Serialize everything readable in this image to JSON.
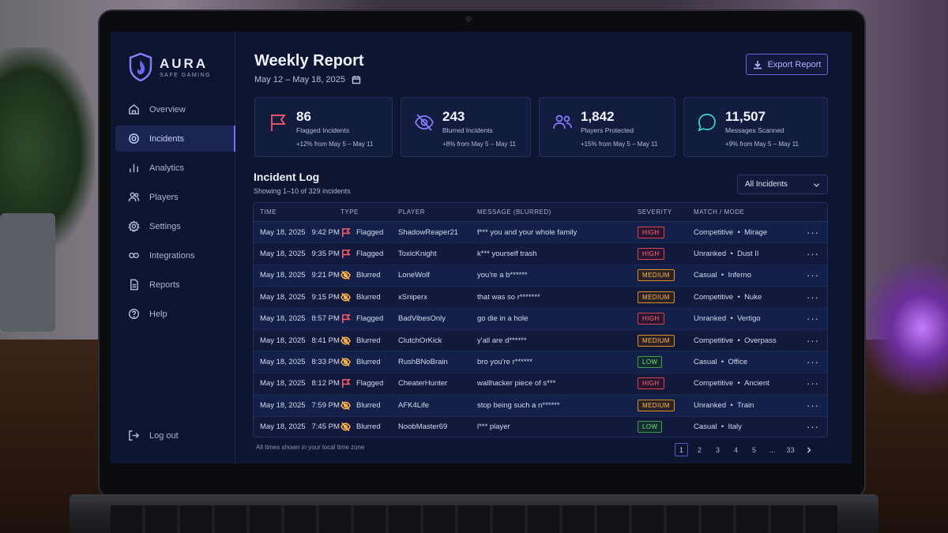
{
  "brand": {
    "name": "AURA",
    "tagline": "SAFE GAMING"
  },
  "sidebar": {
    "items": [
      {
        "label": "Overview",
        "icon": "home-icon",
        "active": false
      },
      {
        "label": "Incidents",
        "icon": "target-icon",
        "active": true
      },
      {
        "label": "Analytics",
        "icon": "bar-chart-icon",
        "active": false
      },
      {
        "label": "Players",
        "icon": "users-icon",
        "active": false
      },
      {
        "label": "Settings",
        "icon": "gear-icon",
        "active": false
      },
      {
        "label": "Integrations",
        "icon": "integrations-icon",
        "active": false
      },
      {
        "label": "Reports",
        "icon": "document-icon",
        "active": false
      },
      {
        "label": "Help",
        "icon": "help-icon",
        "active": false
      }
    ],
    "logout": "Log out"
  },
  "header": {
    "title": "Weekly Report",
    "date_range": "May 12 – May 18, 2025",
    "export_label": "Export Report"
  },
  "cards": [
    {
      "value": "86",
      "label": "Flagged Incidents",
      "change": "+12% from May 5 – May 11",
      "icon": "flag-icon",
      "color": "#ff5a6a"
    },
    {
      "value": "243",
      "label": "Blurred Incidents",
      "change": "+8% from May 5 – May 11",
      "icon": "eye-off-icon",
      "color": "#8a7dff"
    },
    {
      "value": "1,842",
      "label": "Players Protected",
      "change": "+15% from May 5 – May 11",
      "icon": "users-icon",
      "color": "#8a7dff"
    },
    {
      "value": "11,507",
      "label": "Messages Scanned",
      "change": "+9% from May 5 – May 11",
      "icon": "chat-icon",
      "color": "#3fd6d0"
    }
  ],
  "log": {
    "title": "Incident Log",
    "subtitle": "Showing 1–10 of 329 incidents",
    "filter": "All Incidents",
    "columns": [
      "TIME",
      "TYPE",
      "PLAYER",
      "MESSAGE (BLURRED)",
      "SEVERITY",
      "MATCH / MODE"
    ],
    "rows": [
      {
        "date": "May 18, 2025",
        "time": "9:42 PM",
        "type": "Flagged",
        "player": "ShadowReaper21",
        "message": "f*** you and your whole family",
        "severity": "HIGH",
        "match": "Competitive",
        "mode": "Mirage"
      },
      {
        "date": "May 18, 2025",
        "time": "9:35 PM",
        "type": "Flagged",
        "player": "ToxicKnight",
        "message": "k*** yourself trash",
        "severity": "HIGH",
        "match": "Unranked",
        "mode": "Dust II"
      },
      {
        "date": "May 18, 2025",
        "time": "9:21 PM",
        "type": "Blurred",
        "player": "LoneWolf",
        "message": "you're a b******",
        "severity": "MEDIUM",
        "match": "Casual",
        "mode": "Inferno"
      },
      {
        "date": "May 18, 2025",
        "time": "9:15 PM",
        "type": "Blurred",
        "player": "xSniperx",
        "message": "that was so r*******",
        "severity": "MEDIUM",
        "match": "Competitive",
        "mode": "Nuke"
      },
      {
        "date": "May 18, 2025",
        "time": "8:57 PM",
        "type": "Flagged",
        "player": "BadVibesOnly",
        "message": "go die in a hole",
        "severity": "HIGH",
        "match": "Unranked",
        "mode": "Vertigo"
      },
      {
        "date": "May 18, 2025",
        "time": "8:41 PM",
        "type": "Blurred",
        "player": "ClutchOrKick",
        "message": "y'all are d******",
        "severity": "MEDIUM",
        "match": "Competitive",
        "mode": "Overpass"
      },
      {
        "date": "May 18, 2025",
        "time": "8:33 PM",
        "type": "Blurred",
        "player": "RushBNoBrain",
        "message": "bro you're r******",
        "severity": "LOW",
        "match": "Casual",
        "mode": "Office"
      },
      {
        "date": "May 18, 2025",
        "time": "8:12 PM",
        "type": "Flagged",
        "player": "CheaterHunter",
        "message": "wallhacker piece of s***",
        "severity": "HIGH",
        "match": "Competitive",
        "mode": "Ancient"
      },
      {
        "date": "May 18, 2025",
        "time": "7:59 PM",
        "type": "Blurred",
        "player": "AFK4Life",
        "message": "stop being such a n******",
        "severity": "MEDIUM",
        "match": "Unranked",
        "mode": "Train"
      },
      {
        "date": "May 18, 2025",
        "time": "7:45 PM",
        "type": "Blurred",
        "player": "NoobMaster69",
        "message": "l*** player",
        "severity": "LOW",
        "match": "Casual",
        "mode": "Italy"
      }
    ],
    "footnote": "All times shown in your local time zone",
    "pages": [
      "1",
      "2",
      "3",
      "4",
      "5",
      "...",
      "33"
    ],
    "current_page": "1"
  },
  "colors": {
    "flag": "#ff5a6a",
    "blur": "#ffb547",
    "accent": "#7b6cff"
  }
}
